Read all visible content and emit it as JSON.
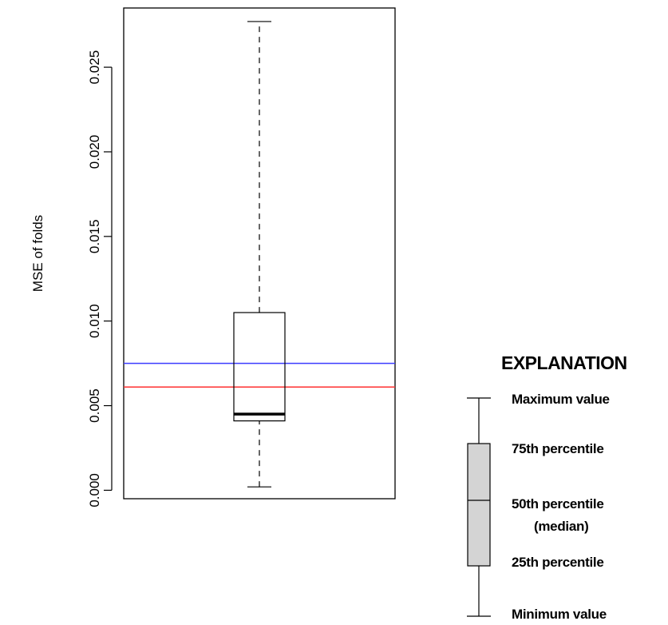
{
  "chart_data": {
    "type": "box",
    "ylabel": "MSE of folds",
    "ylim": [
      -0.0005,
      0.0285
    ],
    "yticks": [
      "0.000",
      "0.005",
      "0.010",
      "0.015",
      "0.020",
      "0.025"
    ],
    "ytick_values": [
      0.0,
      0.005,
      0.01,
      0.015,
      0.02,
      0.025
    ],
    "box": {
      "min": 0.0002,
      "q1": 0.0041,
      "median": 0.0045,
      "q3": 0.0105,
      "max": 0.0277
    },
    "reference_lines": [
      {
        "value": 0.0075,
        "color": "#3b3bff"
      },
      {
        "value": 0.0061,
        "color": "#ff3030"
      }
    ],
    "grid": false,
    "legend": {
      "title": "EXPLANATION",
      "placement": "bottom-right",
      "box_fill": "#d4d4d4",
      "items": [
        {
          "key": "max",
          "label": "Maximum value"
        },
        {
          "key": "q3",
          "label": "75th percentile"
        },
        {
          "key": "median",
          "label": "50th percentile"
        },
        {
          "key": "median2",
          "label": "(median)"
        },
        {
          "key": "q1",
          "label": "25th percentile"
        },
        {
          "key": "min",
          "label": "Minimum value"
        }
      ]
    }
  }
}
